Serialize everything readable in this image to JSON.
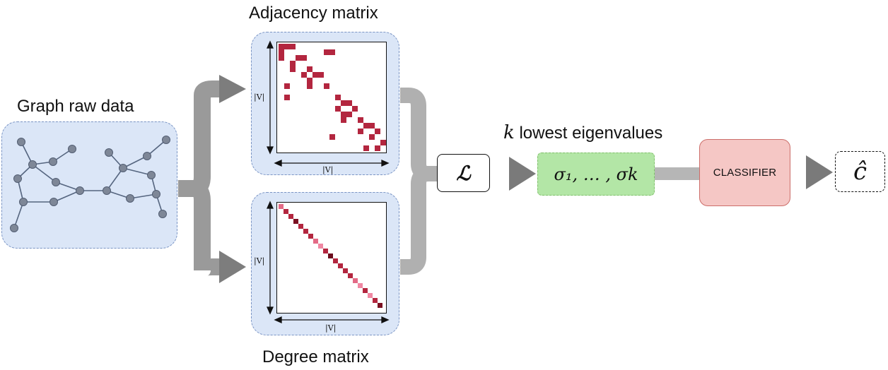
{
  "labels": {
    "graph_raw_data": "Graph raw data",
    "adjacency_matrix": "Adjacency matrix",
    "degree_matrix": "Degree matrix",
    "k_var": "k",
    "lowest_eigenvalues": "lowest eigenvalues",
    "laplacian_symbol": "ℒ",
    "eigen_sequence": "σ₁, … , σk",
    "classifier": "CLASSIFIER",
    "output_symbol": "ĉ",
    "v_size": "|V|"
  },
  "colors": {
    "panel_fill": "#dbe6f7",
    "panel_border": "#7a94c4",
    "graph_node": "#7e8797",
    "graph_edge": "#55657f",
    "arrow_gray": "#8e8e8e",
    "adjacency_cell": "#b3263f",
    "eigen_box_fill": "#b3e6a6",
    "eigen_box_border": "#7fbf6a",
    "classifier_fill": "#f5c7c5",
    "classifier_border": "#cc6e6a"
  }
}
